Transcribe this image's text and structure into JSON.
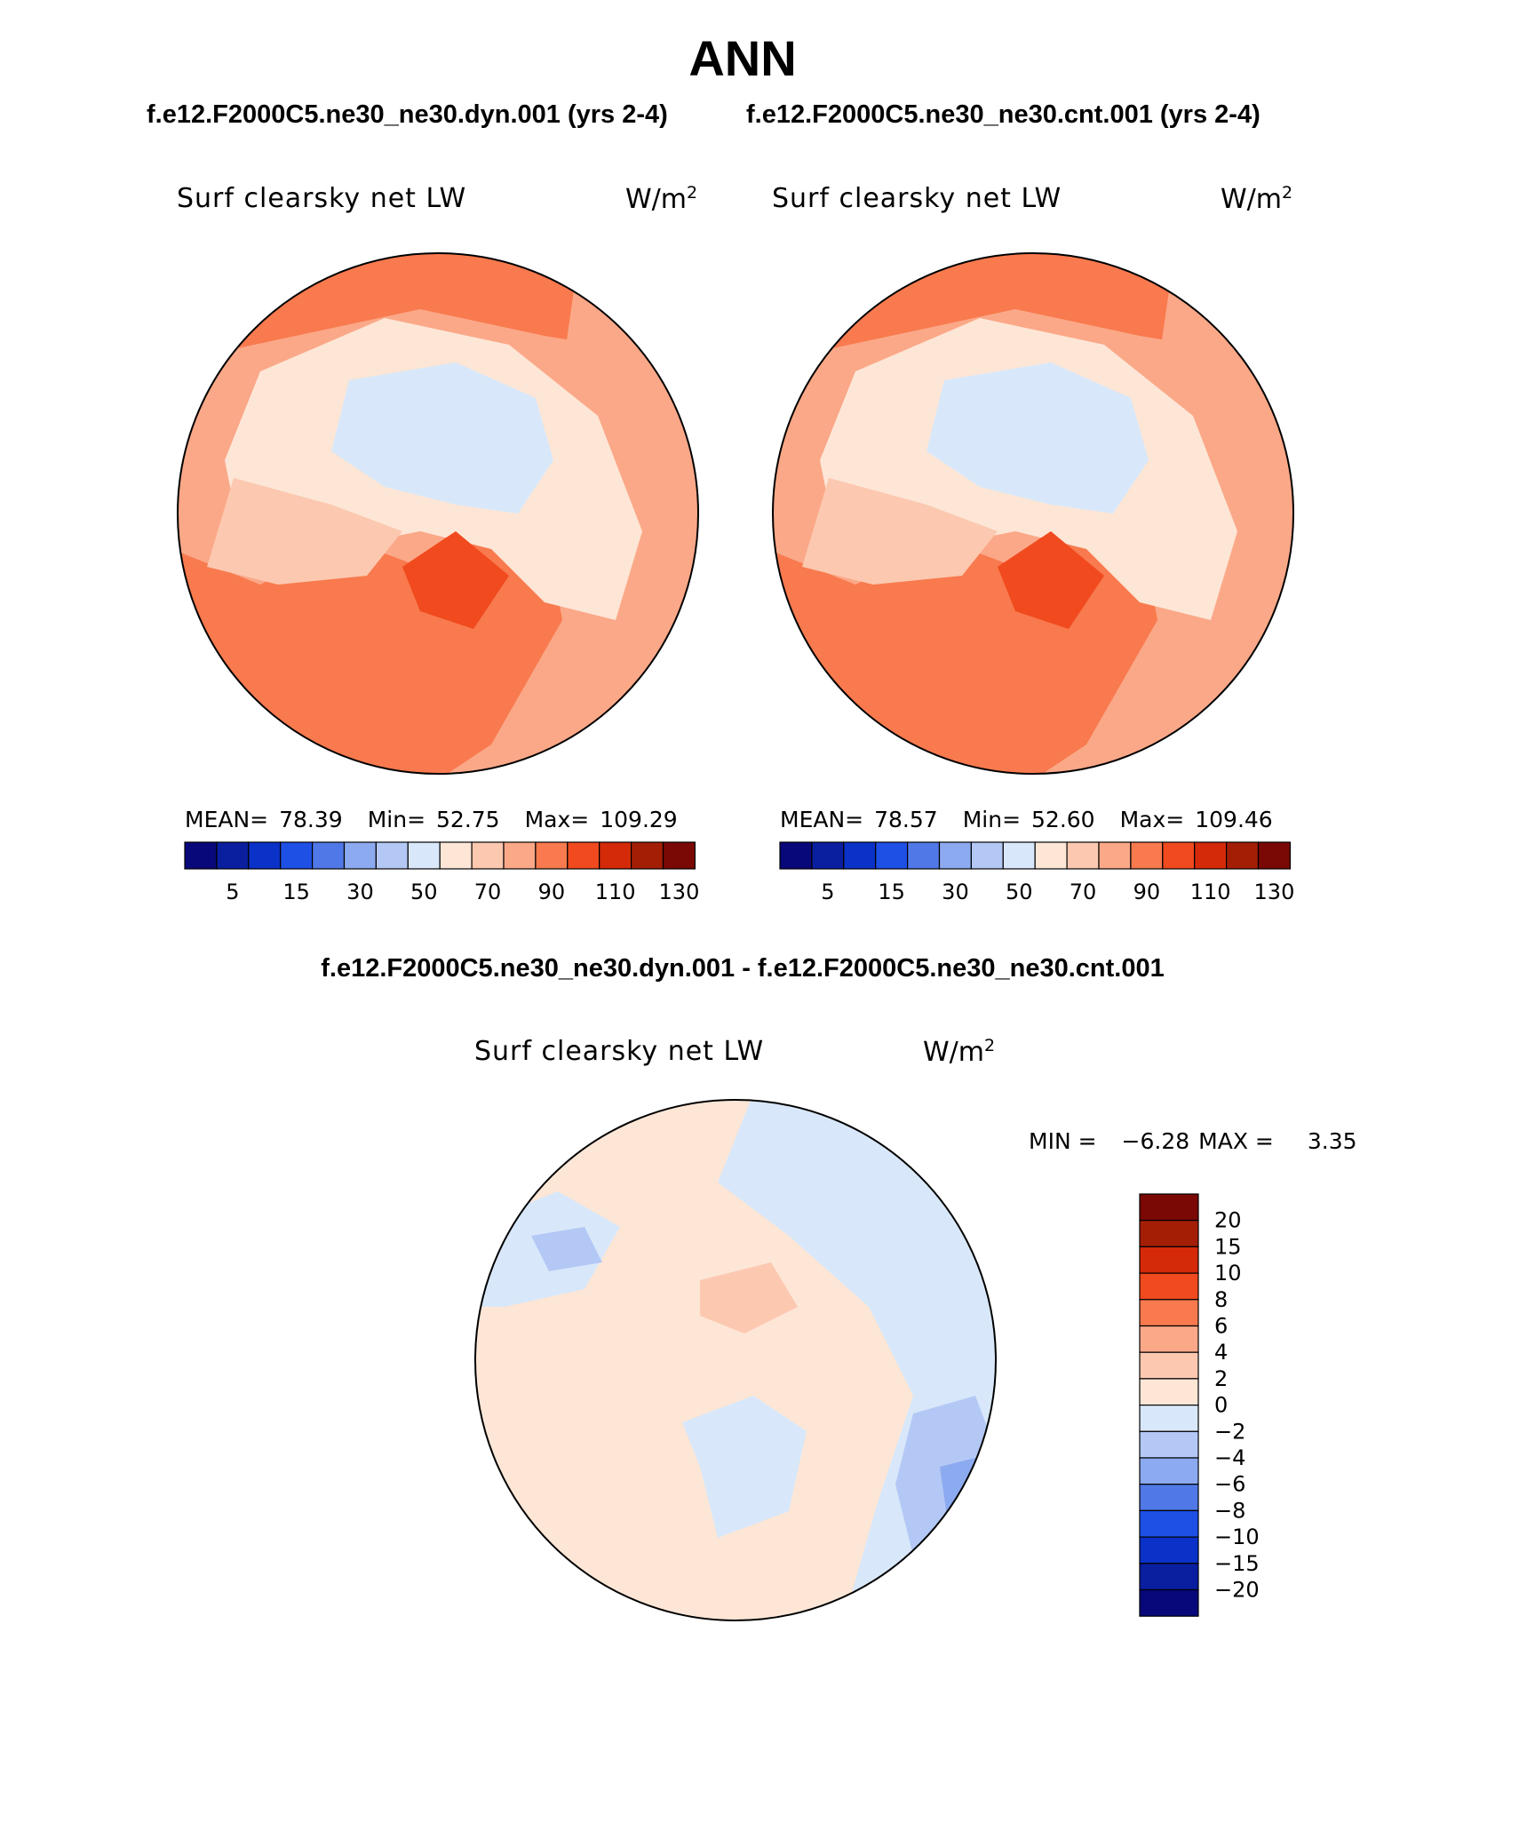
{
  "title": "ANN",
  "case_titles": {
    "left": "f.e12.F2000C5.ne30_ne30.dyn.001 (yrs 2-4)",
    "right": "f.e12.F2000C5.ne30_ne30.cnt.001 (yrs 2-4)"
  },
  "diff_title": "f.e12.F2000C5.ne30_ne30.dyn.001 - f.e12.F2000C5.ne30_ne30.cnt.001",
  "panels": [
    {
      "id": "dyn",
      "variable": "Surf clearsky net LW",
      "units_base": "W/m",
      "units_exp": "2",
      "stats": {
        "mean_label": "MEAN=",
        "mean": "78.39",
        "min_label": "Min=",
        "min": "52.75",
        "max_label": "Max=",
        "max": "109.29"
      }
    },
    {
      "id": "cnt",
      "variable": "Surf clearsky net LW",
      "units_base": "W/m",
      "units_exp": "2",
      "stats": {
        "mean_label": "MEAN=",
        "mean": "78.57",
        "min_label": "Min=",
        "min": "52.60",
        "max_label": "Max=",
        "max": "109.46"
      }
    }
  ],
  "diff_panel": {
    "variable": "Surf clearsky net LW",
    "units_base": "W/m",
    "units_exp": "2",
    "min_label": "MIN =",
    "min": "−6.28",
    "max_label": "MAX =",
    "max": "3.35"
  },
  "colorbar": {
    "colors": [
      "#08087a",
      "#0a1ea0",
      "#0a32c8",
      "#1e50e6",
      "#5078e6",
      "#8caaf0",
      "#b4c8f5",
      "#d8e8fa",
      "#fde6d6",
      "#fcc8b0",
      "#fba888",
      "#f87a4e",
      "#f04a1e",
      "#d42a0a",
      "#a41e06",
      "#7a0804"
    ],
    "tick_labels": [
      "5",
      "15",
      "30",
      "50",
      "70",
      "90",
      "110",
      "130"
    ]
  },
  "diff_colorbar": {
    "colors_top_to_bottom": [
      "#7a0804",
      "#a41e06",
      "#d42a0a",
      "#f04a1e",
      "#f87a4e",
      "#fba888",
      "#fcc8b0",
      "#fde6d6",
      "#d8e8fa",
      "#b4c8f5",
      "#8caaf0",
      "#5078e6",
      "#1e50e6",
      "#0a32c8",
      "#0a1ea0",
      "#08087a"
    ],
    "labels": [
      "20",
      "15",
      "10",
      "8",
      "6",
      "4",
      "2",
      "0",
      "−2",
      "−4",
      "−6",
      "−8",
      "−10",
      "−15",
      "−20"
    ]
  }
}
